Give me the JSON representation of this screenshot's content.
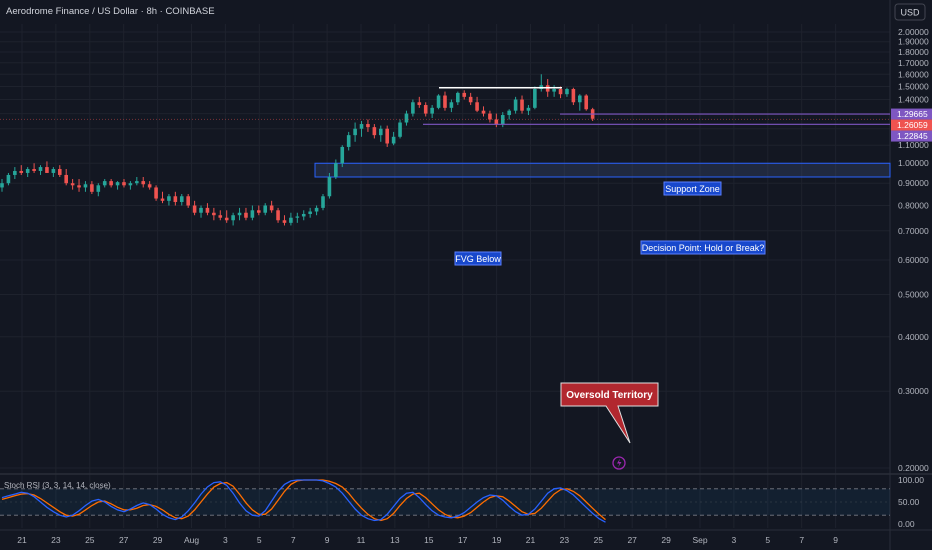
{
  "header": {
    "symbol_title": "Aerodrome Finance / US Dollar · 8h · COINBASE",
    "currency_button": "USD"
  },
  "colors": {
    "background": "#131722",
    "grid": "#1e222d",
    "up": "#26a69a",
    "down": "#ef5350",
    "zone_line": "#7e57c2",
    "fvg_border": "#2962ff",
    "annotation_bg": "#1848cc",
    "callout_bg": "#b2282f",
    "stoch_k": "#2962ff",
    "stoch_d": "#ff6d00",
    "flash_icon": "#9c27b0"
  },
  "chart_data": {
    "type": "candlestick",
    "timeframe": "8h",
    "x_axis": {
      "tick_labels": [
        "21",
        "23",
        "25",
        "27",
        "29",
        "Aug",
        "3",
        "5",
        "7",
        "9",
        "11",
        "13",
        "15",
        "17",
        "19",
        "21",
        "23",
        "25",
        "27",
        "29",
        "Sep",
        "3",
        "5",
        "7",
        "9"
      ]
    },
    "y_axis": {
      "scale": "log",
      "range": [
        0.195,
        2.1
      ],
      "tick_labels": [
        "2.00000",
        "1.90000",
        "1.80000",
        "1.70000",
        "1.60000",
        "1.50000",
        "1.40000",
        "1.30000",
        "1.20000",
        "1.10000",
        "1.00000",
        "0.90000",
        "0.80000",
        "0.70000",
        "0.60000",
        "0.50000",
        "0.40000",
        "0.30000",
        "0.20000"
      ],
      "ticks": [
        2.0,
        1.9,
        1.8,
        1.7,
        1.6,
        1.5,
        1.4,
        1.3,
        1.2,
        1.1,
        1.0,
        0.9,
        0.8,
        0.7,
        0.6,
        0.5,
        0.4,
        0.3,
        0.2
      ]
    },
    "candles": [
      {
        "o": 0.88,
        "h": 0.92,
        "l": 0.86,
        "c": 0.9
      },
      {
        "o": 0.9,
        "h": 0.95,
        "l": 0.89,
        "c": 0.94
      },
      {
        "o": 0.94,
        "h": 0.98,
        "l": 0.92,
        "c": 0.96
      },
      {
        "o": 0.96,
        "h": 0.99,
        "l": 0.94,
        "c": 0.95
      },
      {
        "o": 0.95,
        "h": 0.98,
        "l": 0.93,
        "c": 0.97
      },
      {
        "o": 0.97,
        "h": 1.0,
        "l": 0.95,
        "c": 0.96
      },
      {
        "o": 0.96,
        "h": 0.99,
        "l": 0.94,
        "c": 0.98
      },
      {
        "o": 0.98,
        "h": 1.01,
        "l": 0.95,
        "c": 0.95
      },
      {
        "o": 0.95,
        "h": 0.98,
        "l": 0.93,
        "c": 0.97
      },
      {
        "o": 0.97,
        "h": 0.99,
        "l": 0.93,
        "c": 0.94
      },
      {
        "o": 0.94,
        "h": 0.97,
        "l": 0.89,
        "c": 0.9
      },
      {
        "o": 0.9,
        "h": 0.92,
        "l": 0.87,
        "c": 0.89
      },
      {
        "o": 0.89,
        "h": 0.92,
        "l": 0.86,
        "c": 0.88
      },
      {
        "o": 0.88,
        "h": 0.91,
        "l": 0.86,
        "c": 0.895
      },
      {
        "o": 0.895,
        "h": 0.91,
        "l": 0.85,
        "c": 0.86
      },
      {
        "o": 0.86,
        "h": 0.9,
        "l": 0.84,
        "c": 0.89
      },
      {
        "o": 0.89,
        "h": 0.92,
        "l": 0.88,
        "c": 0.91
      },
      {
        "o": 0.91,
        "h": 0.92,
        "l": 0.88,
        "c": 0.89
      },
      {
        "o": 0.89,
        "h": 0.91,
        "l": 0.87,
        "c": 0.905
      },
      {
        "o": 0.905,
        "h": 0.92,
        "l": 0.88,
        "c": 0.89
      },
      {
        "o": 0.89,
        "h": 0.91,
        "l": 0.87,
        "c": 0.9
      },
      {
        "o": 0.9,
        "h": 0.93,
        "l": 0.89,
        "c": 0.91
      },
      {
        "o": 0.91,
        "h": 0.93,
        "l": 0.88,
        "c": 0.895
      },
      {
        "o": 0.895,
        "h": 0.91,
        "l": 0.87,
        "c": 0.88
      },
      {
        "o": 0.88,
        "h": 0.89,
        "l": 0.82,
        "c": 0.83
      },
      {
        "o": 0.83,
        "h": 0.86,
        "l": 0.81,
        "c": 0.82
      },
      {
        "o": 0.82,
        "h": 0.85,
        "l": 0.8,
        "c": 0.84
      },
      {
        "o": 0.84,
        "h": 0.86,
        "l": 0.8,
        "c": 0.815
      },
      {
        "o": 0.815,
        "h": 0.85,
        "l": 0.8,
        "c": 0.84
      },
      {
        "o": 0.84,
        "h": 0.85,
        "l": 0.79,
        "c": 0.8
      },
      {
        "o": 0.8,
        "h": 0.82,
        "l": 0.76,
        "c": 0.77
      },
      {
        "o": 0.77,
        "h": 0.8,
        "l": 0.75,
        "c": 0.79
      },
      {
        "o": 0.79,
        "h": 0.81,
        "l": 0.76,
        "c": 0.77
      },
      {
        "o": 0.77,
        "h": 0.79,
        "l": 0.74,
        "c": 0.76
      },
      {
        "o": 0.76,
        "h": 0.78,
        "l": 0.74,
        "c": 0.75
      },
      {
        "o": 0.75,
        "h": 0.78,
        "l": 0.73,
        "c": 0.74
      },
      {
        "o": 0.74,
        "h": 0.77,
        "l": 0.72,
        "c": 0.76
      },
      {
        "o": 0.76,
        "h": 0.79,
        "l": 0.74,
        "c": 0.77
      },
      {
        "o": 0.77,
        "h": 0.79,
        "l": 0.74,
        "c": 0.75
      },
      {
        "o": 0.75,
        "h": 0.8,
        "l": 0.74,
        "c": 0.78
      },
      {
        "o": 0.78,
        "h": 0.8,
        "l": 0.76,
        "c": 0.77
      },
      {
        "o": 0.77,
        "h": 0.81,
        "l": 0.76,
        "c": 0.8
      },
      {
        "o": 0.8,
        "h": 0.82,
        "l": 0.77,
        "c": 0.78
      },
      {
        "o": 0.78,
        "h": 0.79,
        "l": 0.73,
        "c": 0.74
      },
      {
        "o": 0.74,
        "h": 0.76,
        "l": 0.72,
        "c": 0.73
      },
      {
        "o": 0.73,
        "h": 0.77,
        "l": 0.72,
        "c": 0.75
      },
      {
        "o": 0.75,
        "h": 0.77,
        "l": 0.73,
        "c": 0.755
      },
      {
        "o": 0.755,
        "h": 0.78,
        "l": 0.74,
        "c": 0.765
      },
      {
        "o": 0.765,
        "h": 0.79,
        "l": 0.75,
        "c": 0.775
      },
      {
        "o": 0.775,
        "h": 0.8,
        "l": 0.76,
        "c": 0.79
      },
      {
        "o": 0.79,
        "h": 0.85,
        "l": 0.78,
        "c": 0.84
      },
      {
        "o": 0.84,
        "h": 0.95,
        "l": 0.83,
        "c": 0.93
      },
      {
        "o": 0.93,
        "h": 1.02,
        "l": 0.92,
        "c": 1.0
      },
      {
        "o": 1.0,
        "h": 1.1,
        "l": 0.98,
        "c": 1.09
      },
      {
        "o": 1.09,
        "h": 1.18,
        "l": 1.07,
        "c": 1.16
      },
      {
        "o": 1.16,
        "h": 1.24,
        "l": 1.12,
        "c": 1.2
      },
      {
        "o": 1.2,
        "h": 1.25,
        "l": 1.15,
        "c": 1.23
      },
      {
        "o": 1.23,
        "h": 1.26,
        "l": 1.18,
        "c": 1.21
      },
      {
        "o": 1.21,
        "h": 1.23,
        "l": 1.14,
        "c": 1.16
      },
      {
        "o": 1.16,
        "h": 1.22,
        "l": 1.12,
        "c": 1.2
      },
      {
        "o": 1.2,
        "h": 1.22,
        "l": 1.09,
        "c": 1.11
      },
      {
        "o": 1.11,
        "h": 1.18,
        "l": 1.1,
        "c": 1.15
      },
      {
        "o": 1.15,
        "h": 1.26,
        "l": 1.14,
        "c": 1.24
      },
      {
        "o": 1.24,
        "h": 1.32,
        "l": 1.22,
        "c": 1.3
      },
      {
        "o": 1.3,
        "h": 1.4,
        "l": 1.28,
        "c": 1.38
      },
      {
        "o": 1.38,
        "h": 1.42,
        "l": 1.34,
        "c": 1.36
      },
      {
        "o": 1.36,
        "h": 1.38,
        "l": 1.28,
        "c": 1.3
      },
      {
        "o": 1.3,
        "h": 1.36,
        "l": 1.27,
        "c": 1.34
      },
      {
        "o": 1.34,
        "h": 1.44,
        "l": 1.33,
        "c": 1.43
      },
      {
        "o": 1.43,
        "h": 1.46,
        "l": 1.32,
        "c": 1.34
      },
      {
        "o": 1.34,
        "h": 1.4,
        "l": 1.31,
        "c": 1.38
      },
      {
        "o": 1.38,
        "h": 1.46,
        "l": 1.36,
        "c": 1.45
      },
      {
        "o": 1.45,
        "h": 1.47,
        "l": 1.4,
        "c": 1.42
      },
      {
        "o": 1.42,
        "h": 1.45,
        "l": 1.36,
        "c": 1.38
      },
      {
        "o": 1.38,
        "h": 1.42,
        "l": 1.31,
        "c": 1.32
      },
      {
        "o": 1.32,
        "h": 1.35,
        "l": 1.28,
        "c": 1.3
      },
      {
        "o": 1.3,
        "h": 1.32,
        "l": 1.24,
        "c": 1.26
      },
      {
        "o": 1.26,
        "h": 1.3,
        "l": 1.21,
        "c": 1.23
      },
      {
        "o": 1.23,
        "h": 1.31,
        "l": 1.21,
        "c": 1.29
      },
      {
        "o": 1.29,
        "h": 1.33,
        "l": 1.26,
        "c": 1.32
      },
      {
        "o": 1.32,
        "h": 1.42,
        "l": 1.3,
        "c": 1.4
      },
      {
        "o": 1.4,
        "h": 1.43,
        "l": 1.3,
        "c": 1.32
      },
      {
        "o": 1.32,
        "h": 1.36,
        "l": 1.29,
        "c": 1.34
      },
      {
        "o": 1.34,
        "h": 1.5,
        "l": 1.33,
        "c": 1.48
      },
      {
        "o": 1.48,
        "h": 1.6,
        "l": 1.46,
        "c": 1.51
      },
      {
        "o": 1.51,
        "h": 1.56,
        "l": 1.42,
        "c": 1.46
      },
      {
        "o": 1.46,
        "h": 1.51,
        "l": 1.42,
        "c": 1.48
      },
      {
        "o": 1.48,
        "h": 1.5,
        "l": 1.41,
        "c": 1.44
      },
      {
        "o": 1.44,
        "h": 1.49,
        "l": 1.42,
        "c": 1.48
      },
      {
        "o": 1.48,
        "h": 1.49,
        "l": 1.36,
        "c": 1.38
      },
      {
        "o": 1.38,
        "h": 1.44,
        "l": 1.32,
        "c": 1.43
      },
      {
        "o": 1.43,
        "h": 1.44,
        "l": 1.32,
        "c": 1.33
      },
      {
        "o": 1.33,
        "h": 1.34,
        "l": 1.25,
        "c": 1.265
      }
    ],
    "current_price": 1.26059,
    "price_tags": [
      "1.29665",
      "1.26059",
      "1.22845"
    ],
    "levels": [
      {
        "name": "support zone top",
        "value": 1.29665
      },
      {
        "name": "support zone bottom",
        "value": 1.22845
      }
    ],
    "resistance_line": {
      "value": 1.49
    },
    "fvg_zone": {
      "top": 1.0,
      "bottom": 0.93
    },
    "annotations": {
      "support_zone": "Support Zone",
      "decision_point": "Decision Point: Hold or Break?",
      "fvg_below": "FVG Below",
      "oversold": "Oversold Territory"
    },
    "indicator": {
      "title": "Stoch RSI (3, 3, 14, 14, close)",
      "range": [
        0,
        100
      ],
      "bands": [
        80,
        20
      ],
      "tick_labels": [
        "100.00",
        "50.00",
        "0.00"
      ],
      "k": [
        60,
        64,
        68,
        72,
        70,
        62,
        50,
        38,
        28,
        20,
        16,
        20,
        30,
        42,
        52,
        56,
        50,
        40,
        32,
        28,
        34,
        42,
        48,
        44,
        34,
        22,
        14,
        10,
        16,
        30,
        48,
        68,
        84,
        94,
        96,
        88,
        70,
        48,
        30,
        20,
        18,
        30,
        52,
        74,
        90,
        98,
        100,
        100,
        100,
        100,
        98,
        92,
        84,
        70,
        52,
        34,
        20,
        12,
        8,
        10,
        22,
        40,
        58,
        70,
        72,
        60,
        44,
        30,
        20,
        16,
        14,
        18,
        26,
        38,
        50,
        60,
        66,
        64,
        54,
        40,
        28,
        20,
        22,
        34,
        52,
        70,
        80,
        82,
        76,
        66,
        52,
        38,
        24,
        12,
        4
      ],
      "d": [
        56,
        60,
        64,
        68,
        69,
        66,
        58,
        48,
        38,
        28,
        20,
        18,
        22,
        32,
        42,
        50,
        52,
        46,
        38,
        32,
        32,
        36,
        42,
        44,
        40,
        32,
        22,
        14,
        12,
        18,
        32,
        50,
        68,
        84,
        92,
        94,
        86,
        68,
        48,
        32,
        22,
        22,
        34,
        54,
        74,
        90,
        98,
        100,
        100,
        100,
        100,
        97,
        92,
        84,
        70,
        52,
        36,
        22,
        12,
        8,
        12,
        24,
        42,
        58,
        68,
        70,
        60,
        46,
        32,
        22,
        16,
        14,
        18,
        26,
        38,
        50,
        60,
        64,
        62,
        52,
        40,
        28,
        22,
        24,
        36,
        52,
        68,
        78,
        80,
        74,
        64,
        50,
        36,
        22,
        10
      ]
    }
  }
}
